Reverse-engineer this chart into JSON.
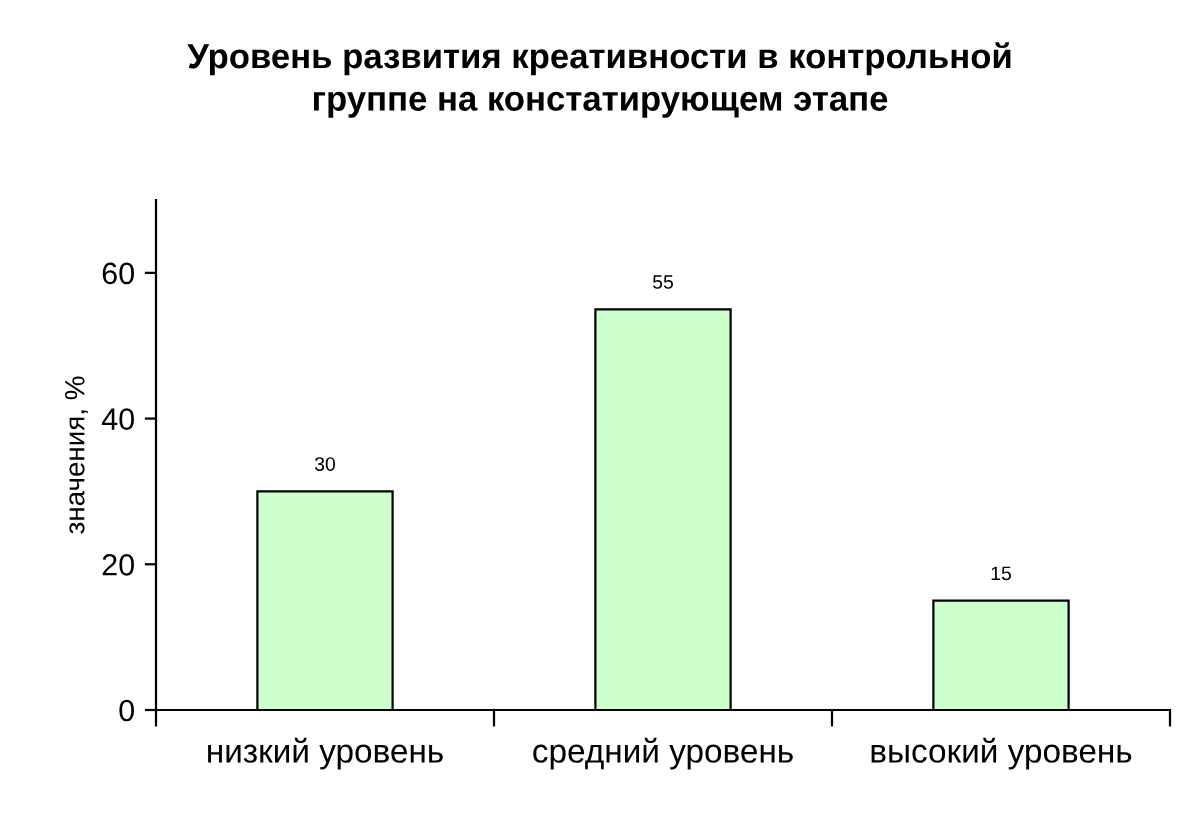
{
  "chart_data": {
    "type": "bar",
    "title": "Уровень развития креативности в контрольной\nгруппе на констатирующем этапе",
    "ylabel": "значения, %",
    "categories": [
      "низкий уровень",
      "средний уровень",
      "высокий уровень"
    ],
    "values": [
      30,
      55,
      15
    ],
    "color": "#ccffcc",
    "ylim": [
      0,
      70
    ],
    "yticks": [
      0,
      20,
      40,
      60
    ],
    "grid": false,
    "data_labels": true
  }
}
